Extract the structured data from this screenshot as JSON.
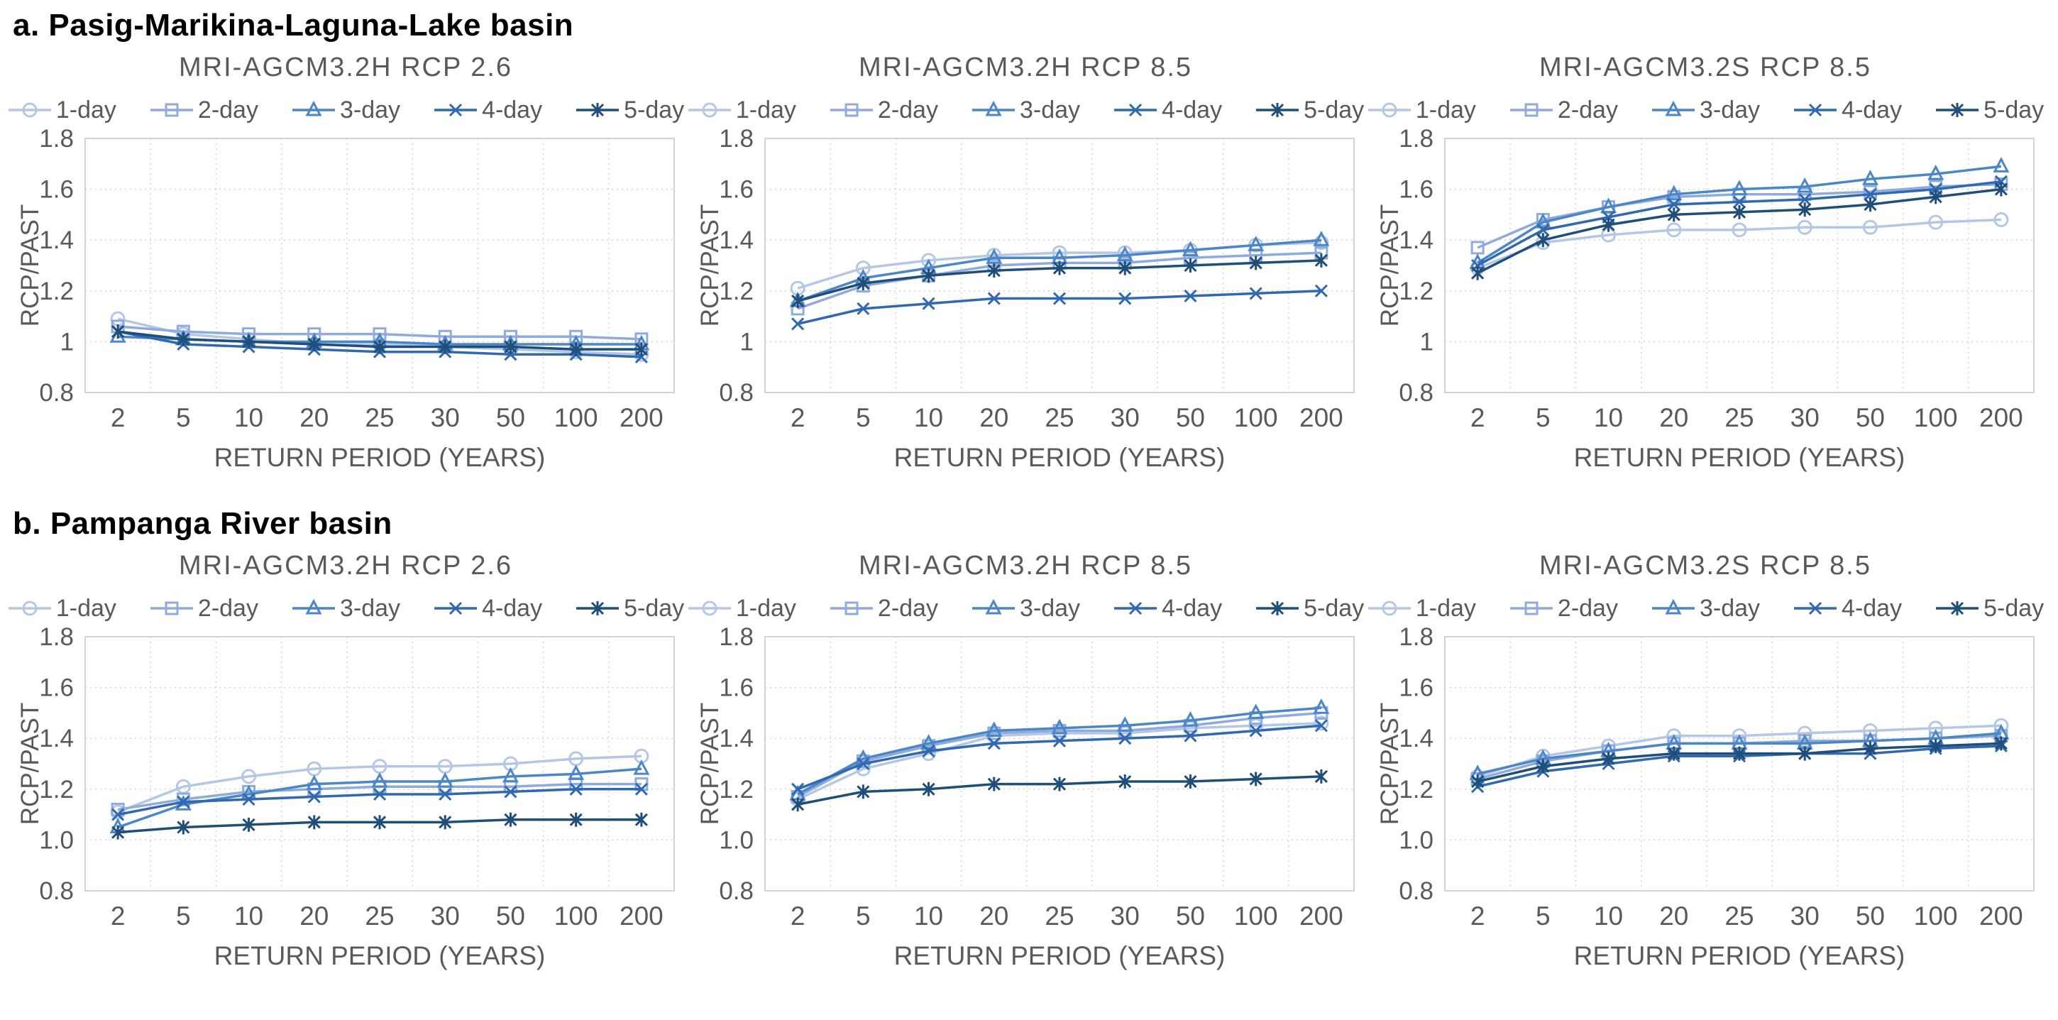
{
  "sections": [
    {
      "label": "a. Pasig-Marikina-Laguna-Lake basin"
    },
    {
      "label": "b. Pampanga River basin"
    }
  ],
  "legend": {
    "items": [
      {
        "name": "1-day",
        "marker": "circle",
        "color": "#b4c7e7"
      },
      {
        "name": "2-day",
        "marker": "square",
        "color": "#8faadc"
      },
      {
        "name": "3-day",
        "marker": "triangle",
        "color": "#4a86c8"
      },
      {
        "name": "4-day",
        "marker": "x",
        "color": "#3069b0"
      },
      {
        "name": "5-day",
        "marker": "star",
        "color": "#1f4e79"
      }
    ]
  },
  "style": {
    "text_color": "#595959",
    "grid_color": "#d6d6d6",
    "border_color": "#cfd2d6"
  },
  "chart_data": [
    {
      "type": "line",
      "title": "MRI-AGCM3.2H RCP 2.6",
      "xlabel": "RETURN PERIOD (YEARS)",
      "ylabel": "RCP/PAST",
      "categories": [
        2,
        5,
        10,
        20,
        25,
        30,
        50,
        100,
        200
      ],
      "ylim": [
        0.8,
        1.8
      ],
      "ytick_labels": [
        "0.8",
        "1",
        "1.2",
        "1.4",
        "1.6",
        "1.8"
      ],
      "grid": true,
      "legend_position": "top",
      "series": [
        {
          "name": "1-day",
          "values": [
            1.09,
            1.03,
            1.01,
            0.99,
            0.99,
            0.98,
            0.97,
            0.96,
            0.95
          ]
        },
        {
          "name": "2-day",
          "values": [
            1.06,
            1.04,
            1.03,
            1.03,
            1.03,
            1.02,
            1.02,
            1.02,
            1.01
          ]
        },
        {
          "name": "3-day",
          "values": [
            1.02,
            1.01,
            1.0,
            1.0,
            1.0,
            0.99,
            0.99,
            0.99,
            0.99
          ]
        },
        {
          "name": "4-day",
          "values": [
            1.04,
            0.99,
            0.98,
            0.97,
            0.96,
            0.96,
            0.95,
            0.95,
            0.94
          ]
        },
        {
          "name": "5-day",
          "values": [
            1.04,
            1.01,
            1.0,
            0.99,
            0.98,
            0.98,
            0.98,
            0.97,
            0.97
          ]
        }
      ]
    },
    {
      "type": "line",
      "title": "MRI-AGCM3.2H RCP 8.5",
      "xlabel": "RETURN PERIOD (YEARS)",
      "ylabel": "RCP/PAST",
      "categories": [
        2,
        5,
        10,
        20,
        25,
        30,
        50,
        100,
        200
      ],
      "ylim": [
        0.8,
        1.8
      ],
      "ytick_labels": [
        "0.8",
        "1",
        "1.2",
        "1.4",
        "1.6",
        "1.8"
      ],
      "grid": true,
      "legend_position": "top",
      "series": [
        {
          "name": "1-day",
          "values": [
            1.21,
            1.29,
            1.32,
            1.34,
            1.35,
            1.35,
            1.36,
            1.38,
            1.39
          ]
        },
        {
          "name": "2-day",
          "values": [
            1.13,
            1.22,
            1.26,
            1.3,
            1.31,
            1.31,
            1.33,
            1.34,
            1.35
          ]
        },
        {
          "name": "3-day",
          "values": [
            1.16,
            1.25,
            1.29,
            1.33,
            1.33,
            1.34,
            1.36,
            1.38,
            1.4
          ]
        },
        {
          "name": "4-day",
          "values": [
            1.07,
            1.13,
            1.15,
            1.17,
            1.17,
            1.17,
            1.18,
            1.19,
            1.2
          ]
        },
        {
          "name": "5-day",
          "values": [
            1.16,
            1.23,
            1.26,
            1.28,
            1.29,
            1.29,
            1.3,
            1.31,
            1.32
          ]
        }
      ]
    },
    {
      "type": "line",
      "title": "MRI-AGCM3.2S RCP 8.5",
      "xlabel": "RETURN PERIOD (YEARS)",
      "ylabel": "RCP/PAST",
      "categories": [
        2,
        5,
        10,
        20,
        25,
        30,
        50,
        100,
        200
      ],
      "ylim": [
        0.8,
        1.8
      ],
      "ytick_labels": [
        "0.8",
        "1",
        "1.2",
        "1.4",
        "1.6",
        "1.8"
      ],
      "grid": true,
      "legend_position": "top",
      "series": [
        {
          "name": "1-day",
          "values": [
            1.29,
            1.39,
            1.42,
            1.44,
            1.44,
            1.45,
            1.45,
            1.47,
            1.48
          ]
        },
        {
          "name": "2-day",
          "values": [
            1.37,
            1.48,
            1.53,
            1.57,
            1.58,
            1.58,
            1.59,
            1.61,
            1.62
          ]
        },
        {
          "name": "3-day",
          "values": [
            1.31,
            1.47,
            1.53,
            1.58,
            1.6,
            1.61,
            1.64,
            1.66,
            1.69
          ]
        },
        {
          "name": "4-day",
          "values": [
            1.3,
            1.44,
            1.49,
            1.54,
            1.55,
            1.56,
            1.58,
            1.6,
            1.63
          ]
        },
        {
          "name": "5-day",
          "values": [
            1.27,
            1.4,
            1.46,
            1.5,
            1.51,
            1.52,
            1.54,
            1.57,
            1.6
          ]
        }
      ]
    },
    {
      "type": "line",
      "title": "MRI-AGCM3.2H RCP 2.6",
      "xlabel": "RETURN PERIOD (YEARS)",
      "ylabel": "RCP/PAST",
      "categories": [
        2,
        5,
        10,
        20,
        25,
        30,
        50,
        100,
        200
      ],
      "ylim": [
        0.8,
        1.8
      ],
      "ytick_labels": [
        "0.8",
        "1.0",
        "1.2",
        "1.4",
        "1.6",
        "1.8"
      ],
      "grid": true,
      "legend_position": "top",
      "series": [
        {
          "name": "1-day",
          "values": [
            1.11,
            1.21,
            1.25,
            1.28,
            1.29,
            1.29,
            1.3,
            1.32,
            1.33
          ]
        },
        {
          "name": "2-day",
          "values": [
            1.12,
            1.16,
            1.19,
            1.2,
            1.21,
            1.21,
            1.21,
            1.22,
            1.22
          ]
        },
        {
          "name": "3-day",
          "values": [
            1.05,
            1.14,
            1.18,
            1.22,
            1.23,
            1.23,
            1.25,
            1.26,
            1.28
          ]
        },
        {
          "name": "4-day",
          "values": [
            1.1,
            1.15,
            1.16,
            1.17,
            1.18,
            1.18,
            1.19,
            1.2,
            1.2
          ]
        },
        {
          "name": "5-day",
          "values": [
            1.03,
            1.05,
            1.06,
            1.07,
            1.07,
            1.07,
            1.08,
            1.08,
            1.08
          ]
        }
      ]
    },
    {
      "type": "line",
      "title": "MRI-AGCM3.2H RCP 8.5",
      "xlabel": "RETURN PERIOD (YEARS)",
      "ylabel": "RCP/PAST",
      "categories": [
        2,
        5,
        10,
        20,
        25,
        30,
        50,
        100,
        200
      ],
      "ylim": [
        0.8,
        1.8
      ],
      "ytick_labels": [
        "0.8",
        "1.0",
        "1.2",
        "1.4",
        "1.6",
        "1.8"
      ],
      "grid": true,
      "legend_position": "top",
      "series": [
        {
          "name": "1-day",
          "values": [
            1.16,
            1.28,
            1.34,
            1.41,
            1.42,
            1.42,
            1.44,
            1.45,
            1.46
          ]
        },
        {
          "name": "2-day",
          "values": [
            1.17,
            1.31,
            1.37,
            1.42,
            1.43,
            1.43,
            1.45,
            1.48,
            1.5
          ]
        },
        {
          "name": "3-day",
          "values": [
            1.18,
            1.32,
            1.38,
            1.43,
            1.44,
            1.45,
            1.47,
            1.5,
            1.52
          ]
        },
        {
          "name": "4-day",
          "values": [
            1.2,
            1.3,
            1.35,
            1.38,
            1.39,
            1.4,
            1.41,
            1.43,
            1.45
          ]
        },
        {
          "name": "5-day",
          "values": [
            1.14,
            1.19,
            1.2,
            1.22,
            1.22,
            1.23,
            1.23,
            1.24,
            1.25
          ]
        }
      ]
    },
    {
      "type": "line",
      "title": "MRI-AGCM3.2S RCP 8.5",
      "xlabel": "RETURN PERIOD (YEARS)",
      "ylabel": "RCP/PAST",
      "categories": [
        2,
        5,
        10,
        20,
        25,
        30,
        50,
        100,
        200
      ],
      "ylim": [
        0.8,
        1.8
      ],
      "ytick_labels": [
        "0.8",
        "1.0",
        "1.2",
        "1.4",
        "1.6",
        "1.8"
      ],
      "grid": true,
      "legend_position": "top",
      "series": [
        {
          "name": "1-day",
          "values": [
            1.25,
            1.33,
            1.37,
            1.41,
            1.41,
            1.42,
            1.43,
            1.44,
            1.45
          ]
        },
        {
          "name": "2-day",
          "values": [
            1.24,
            1.31,
            1.35,
            1.38,
            1.38,
            1.39,
            1.39,
            1.4,
            1.41
          ]
        },
        {
          "name": "3-day",
          "values": [
            1.26,
            1.32,
            1.35,
            1.38,
            1.38,
            1.38,
            1.39,
            1.4,
            1.42
          ]
        },
        {
          "name": "4-day",
          "values": [
            1.21,
            1.27,
            1.3,
            1.33,
            1.33,
            1.34,
            1.34,
            1.36,
            1.37
          ]
        },
        {
          "name": "5-day",
          "values": [
            1.23,
            1.29,
            1.32,
            1.34,
            1.34,
            1.34,
            1.36,
            1.37,
            1.38
          ]
        }
      ]
    }
  ]
}
